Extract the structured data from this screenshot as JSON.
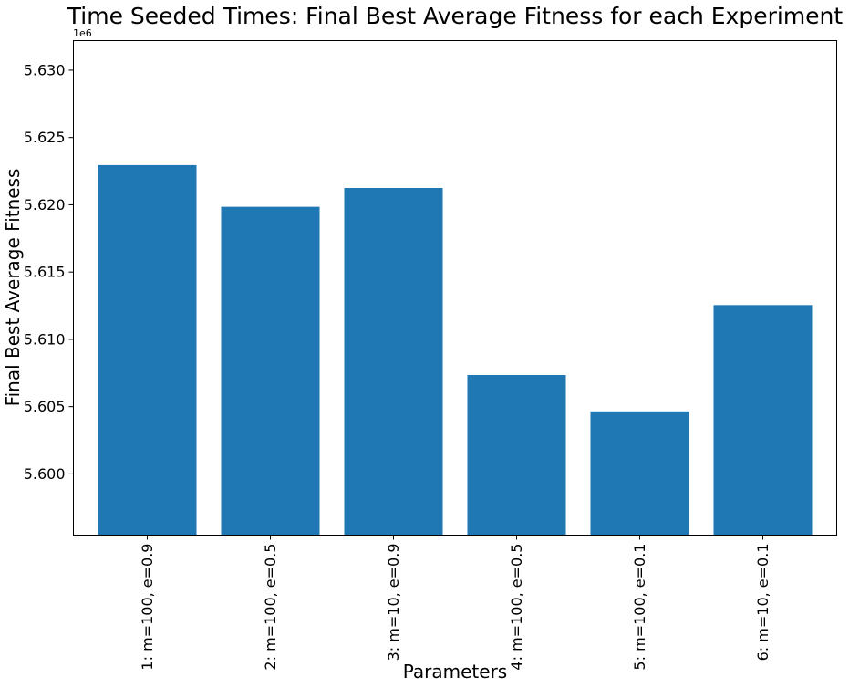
{
  "chart_data": {
    "type": "bar",
    "title": "Time Seeded Times: Final Best Average Fitness for each Experiment",
    "xlabel": "Parameters",
    "ylabel": "Final Best Average Fitness",
    "y_offset_label": "1e6",
    "scale_factor": 1000000,
    "categories": [
      "1: m=100, e=0.9",
      "2: m=100, e=0.5",
      "3: m=10, e=0.9",
      "4: m=100, e=0.5",
      "5: m=100, e=0.1",
      "6: m=10, e=0.1"
    ],
    "values": [
      5622950,
      5619850,
      5621250,
      5607350,
      5604650,
      5612550
    ],
    "ylim": [
      5595450,
      5632200
    ],
    "yticks": [
      5600000,
      5605000,
      5610000,
      5615000,
      5620000,
      5625000,
      5630000
    ],
    "ytick_labels": [
      "5.600",
      "5.605",
      "5.610",
      "5.615",
      "5.620",
      "5.625",
      "5.630"
    ],
    "bar_color": "#1f77b4",
    "grid": false,
    "legend": "none"
  }
}
